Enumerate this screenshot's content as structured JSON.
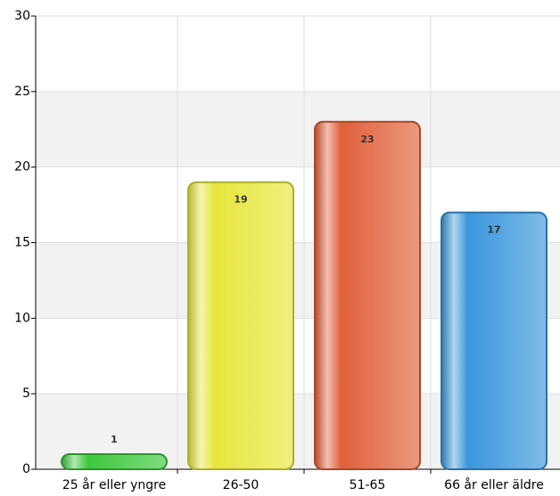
{
  "chart_data": {
    "type": "bar",
    "categories": [
      "25 år eller yngre",
      "26-50",
      "51-65",
      "66 år eller äldre"
    ],
    "values": [
      1,
      19,
      23,
      17
    ],
    "colors": [
      "#3cc83c",
      "#e6e63c",
      "#e0603a",
      "#3a96dc"
    ],
    "ylim": [
      0,
      30
    ],
    "yticks": [
      0,
      5,
      10,
      15,
      20,
      25,
      30
    ],
    "grid": true
  }
}
